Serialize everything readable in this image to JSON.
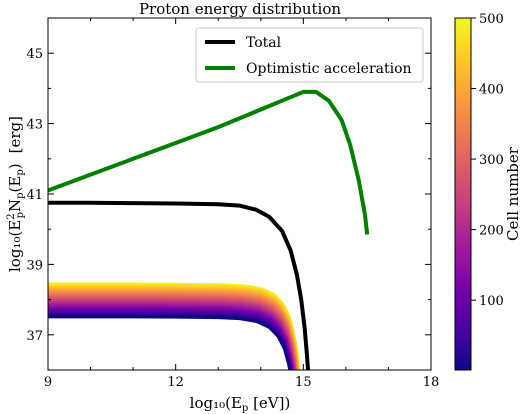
{
  "chart_data": {
    "type": "line",
    "title": "Proton energy distribution",
    "xlabel": "log₁₀(E",
    "xlabel_sub": "p",
    "xlabel_tail": " [eV])",
    "ylabel_parts": {
      "pre": "log₁₀(E",
      "sup": "2",
      "sub1": "p",
      "mid": "N",
      "sub2": "p",
      "mid2": "(E",
      "sub3": "p",
      "post": ")",
      "unit": "[erg]"
    },
    "xlim": [
      9,
      18
    ],
    "ylim": [
      36,
      46
    ],
    "xticks": [
      "9",
      "12",
      "15",
      "18"
    ],
    "xtick_values": [
      9,
      12,
      15,
      18
    ],
    "yticks": [
      "37",
      "39",
      "41",
      "43",
      "45"
    ],
    "ytick_values": [
      37,
      39,
      41,
      43,
      45
    ],
    "legend_position": "top-right",
    "series": [
      {
        "name": "Total",
        "color": "#000000",
        "x": [
          9,
          10,
          11,
          12,
          13,
          13.5,
          13.9,
          14.2,
          14.5,
          14.7,
          14.85,
          14.95,
          15.03,
          15.08,
          15.11
        ],
        "y": [
          40.75,
          40.75,
          40.74,
          40.73,
          40.71,
          40.67,
          40.55,
          40.35,
          39.95,
          39.4,
          38.7,
          38.0,
          37.2,
          36.5,
          36.0
        ]
      },
      {
        "name": "Optimistic acceleration",
        "color": "#008000",
        "x": [
          9,
          10,
          11,
          12,
          13,
          14,
          14.6,
          15.0,
          15.3,
          15.6,
          15.9,
          16.1,
          16.3,
          16.45,
          16.5
        ],
        "y": [
          41.1,
          41.55,
          42.0,
          42.45,
          42.9,
          43.4,
          43.7,
          43.9,
          43.9,
          43.65,
          43.1,
          42.4,
          41.4,
          40.4,
          39.85
        ]
      }
    ],
    "cells": {
      "x": [
        9,
        10,
        11,
        12,
        13,
        13.5,
        13.9,
        14.2,
        14.4,
        14.55,
        14.65,
        14.72,
        14.78
      ],
      "drop_y": [
        0,
        0,
        0,
        -0.005,
        -0.02,
        -0.05,
        -0.13,
        -0.3,
        -0.55,
        -0.9,
        -1.35,
        -1.8,
        -2.4
      ],
      "y_low": 37.5,
      "y_high": 38.45,
      "count": 500
    },
    "colorbar": {
      "label": "Cell number",
      "min": 1,
      "max": 500,
      "ticks": [
        "100",
        "200",
        "300",
        "400",
        "500"
      ],
      "tick_values": [
        100,
        200,
        300,
        400,
        500
      ],
      "colormap": "plasma",
      "stops": [
        "#0d0887",
        "#46039f",
        "#7201a8",
        "#9c179e",
        "#bd3786",
        "#d8576b",
        "#ed7953",
        "#fb9f3a",
        "#fdca26",
        "#f0f921"
      ]
    }
  }
}
